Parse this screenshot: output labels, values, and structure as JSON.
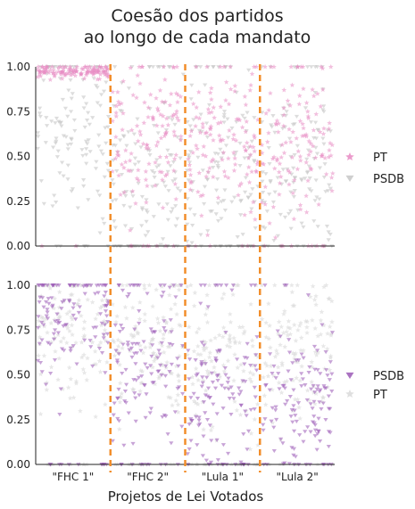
{
  "chart_data": {
    "type": "scatter",
    "title_lines": [
      "Coesão dos partidos",
      "ao longo de cada mandato"
    ],
    "xlabel": "Projetos de Lei Votados",
    "x_categories": [
      "\"FHC 1\"",
      "\"FHC 2\"",
      "\"Lula 1\"",
      "\"Lula 2\""
    ],
    "y_ticks": [
      "0.00",
      "0.25",
      "0.50",
      "0.75",
      "1.00"
    ],
    "ylim": [
      0,
      1
    ],
    "mandate_divider_color": "#f28e2b",
    "panels": [
      {
        "legend_position": "right",
        "series": [
          {
            "name": "PT",
            "marker": "star",
            "color": "#e78ac3",
            "mandate_cohesion_mean": [
              0.97,
              0.62,
              0.55,
              0.55
            ],
            "mandate_cohesion_spread": [
              0.02,
              0.18,
              0.2,
              0.2
            ]
          },
          {
            "name": "PSDB",
            "marker": "triangle-down",
            "color": "#c7c7c7",
            "mandate_cohesion_mean": [
              0.68,
              0.42,
              0.38,
              0.4
            ],
            "mandate_cohesion_spread": [
              0.25,
              0.25,
              0.25,
              0.25
            ]
          }
        ]
      },
      {
        "legend_position": "right",
        "series": [
          {
            "name": "PSDB",
            "marker": "triangle-down",
            "color": "#9b59b6",
            "mandate_cohesion_mean": [
              0.82,
              0.55,
              0.42,
              0.38
            ],
            "mandate_cohesion_spread": [
              0.18,
              0.22,
              0.22,
              0.22
            ]
          },
          {
            "name": "PT",
            "marker": "star",
            "color": "#d9d9d9",
            "mandate_cohesion_mean": [
              0.7,
              0.65,
              0.62,
              0.6
            ],
            "mandate_cohesion_spread": [
              0.2,
              0.2,
              0.2,
              0.2
            ]
          }
        ]
      }
    ]
  }
}
